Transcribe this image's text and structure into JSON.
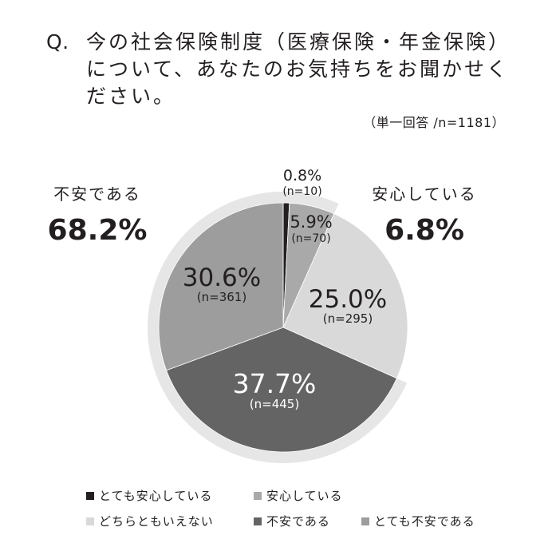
{
  "question": {
    "prefix": "Q.",
    "text": "今の社会保険制度（医療保険・年金保険）について、あなたのお気持ちをお聞かせください。"
  },
  "meta": {
    "note": "（単一回答 /n=1181）"
  },
  "group_labels": {
    "anxious": {
      "label": "不安である",
      "value": "68.2%"
    },
    "secure": {
      "label": "安心している",
      "value": "6.8%"
    }
  },
  "colors": {
    "very_secure": "#231f20",
    "secure": "#a9a9a9",
    "neutral": "#d9d9d9",
    "anxious": "#646464",
    "very_anxious": "#9d9d9d",
    "ring": "#e6e6e6",
    "text": "#231f20"
  },
  "chart_data": {
    "type": "pie",
    "slices": [
      {
        "name": "とても安心している",
        "percent": 0.8,
        "percent_label": "0.8%",
        "n_label": "(n=10)",
        "color": "#231f20"
      },
      {
        "name": "安心している",
        "percent": 5.9,
        "percent_label": "5.9%",
        "n_label": "(n=70)",
        "color": "#a9a9a9"
      },
      {
        "name": "どちらともいえない",
        "percent": 25.0,
        "percent_label": "25.0%",
        "n_label": "(n=295)",
        "color": "#d9d9d9"
      },
      {
        "name": "不安である",
        "percent": 37.7,
        "percent_label": "37.7%",
        "n_label": "(n=445)",
        "color": "#646464"
      },
      {
        "name": "とても不安である",
        "percent": 30.6,
        "percent_label": "30.6%",
        "n_label": "(n=361)",
        "color": "#9d9d9d"
      }
    ],
    "legend": [
      "とても安心している",
      "安心している",
      "どちらともいえない",
      "不安である",
      "とても不安である"
    ],
    "legend_position": "bottom"
  }
}
